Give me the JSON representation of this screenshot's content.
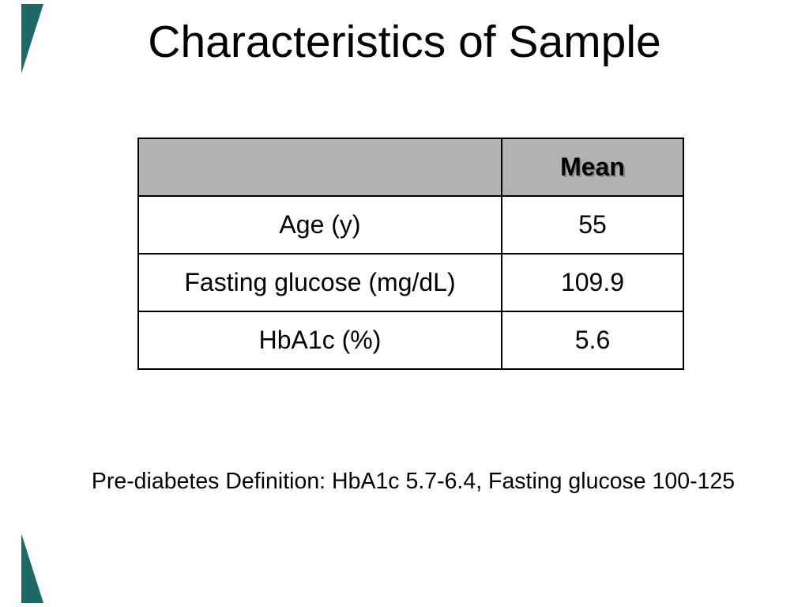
{
  "slide": {
    "title": "Characteristics of Sample",
    "footnote": "Pre-diabetes Definition: HbA1c 5.7-6.4, Fasting glucose 100-125"
  },
  "table": {
    "header": {
      "empty_label": "",
      "mean_label": "Mean"
    },
    "rows": [
      {
        "label": "Age (y)",
        "value": "55"
      },
      {
        "label": "Fasting glucose (mg/dL)",
        "value": "109.9"
      },
      {
        "label": "HbA1c (%)",
        "value": "5.6"
      }
    ]
  },
  "colors": {
    "background": "#ffffff",
    "text": "#000000",
    "table_border": "#000000",
    "header_fill": "#b2b2b2",
    "corner_accent_teal": "#1f6868"
  }
}
